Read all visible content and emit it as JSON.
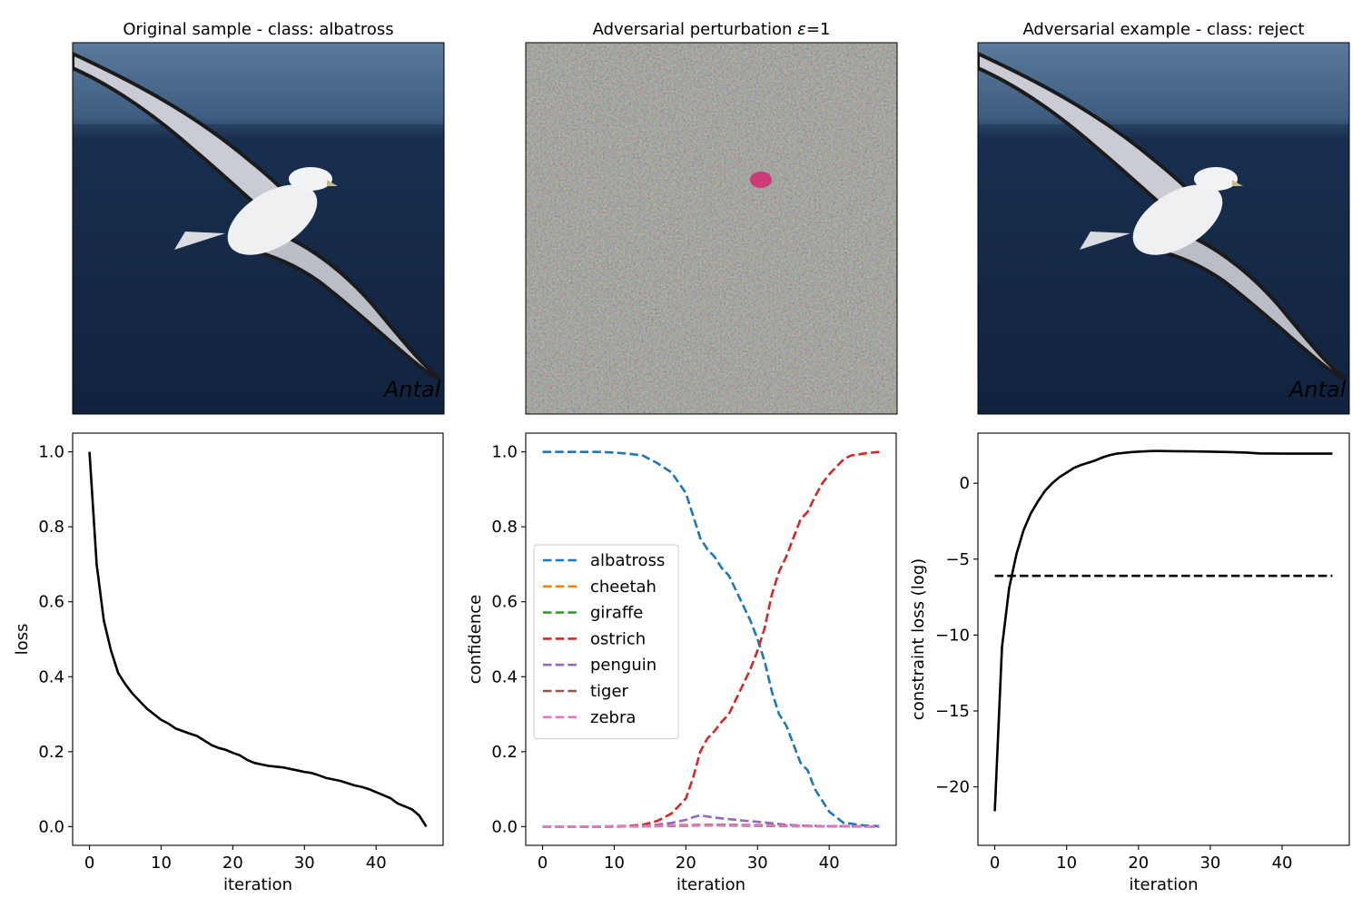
{
  "panels": {
    "original": {
      "title": "Original sample - class: albatross",
      "watermark": "Antal"
    },
    "perturbation": {
      "title_prefix": "Adversarial perturbation ",
      "title_epsilon": "ε",
      "title_suffix": "=1"
    },
    "adversarial": {
      "title": "Adversarial example - class: reject",
      "watermark": "Antal"
    }
  },
  "colors": {
    "albatross": "#1f77b4",
    "cheetah": "#ff7f0e",
    "giraffe": "#2ca02c",
    "ostrich": "#d62728",
    "penguin": "#9467bd",
    "tiger": "#8c564b",
    "zebra": "#e377c2",
    "black": "#000000",
    "sky": "#4a6a8c",
    "sea": "#14284a",
    "perturbation_gray": "#8a8a80"
  },
  "chart_data": [
    {
      "type": "line",
      "xlabel": "iteration",
      "ylabel": "loss",
      "xlim": [
        -2.35,
        49.35
      ],
      "ylim": [
        -0.05,
        1.05
      ],
      "xticks": [
        "0",
        "10",
        "20",
        "30",
        "40"
      ],
      "yticks": [
        "0.0",
        "0.2",
        "0.4",
        "0.6",
        "0.8",
        "1.0"
      ],
      "series": [
        {
          "style": "solid",
          "color": "#000000",
          "x": [
            0,
            1,
            2,
            3,
            4,
            5,
            6,
            7,
            8,
            9,
            10,
            11,
            12,
            13,
            14,
            15,
            16,
            17,
            18,
            19,
            20,
            21,
            22,
            23,
            24,
            25,
            26,
            27,
            28,
            29,
            30,
            31,
            32,
            33,
            34,
            35,
            36,
            37,
            38,
            39,
            40,
            41,
            42,
            43,
            44,
            45,
            46,
            47
          ],
          "y": [
            1.0,
            0.7,
            0.55,
            0.47,
            0.41,
            0.38,
            0.355,
            0.335,
            0.315,
            0.3,
            0.285,
            0.275,
            0.262,
            0.255,
            0.248,
            0.242,
            0.23,
            0.218,
            0.21,
            0.205,
            0.197,
            0.19,
            0.178,
            0.17,
            0.166,
            0.162,
            0.16,
            0.158,
            0.154,
            0.15,
            0.146,
            0.143,
            0.137,
            0.13,
            0.126,
            0.122,
            0.116,
            0.11,
            0.106,
            0.1,
            0.092,
            0.084,
            0.076,
            0.062,
            0.054,
            0.046,
            0.03,
            0.0
          ]
        }
      ]
    },
    {
      "type": "line",
      "xlabel": "iteration",
      "ylabel": "confidence",
      "xlim": [
        -2.35,
        49.35
      ],
      "ylim": [
        -0.05,
        1.05
      ],
      "xticks": [
        "0",
        "10",
        "20",
        "30",
        "40"
      ],
      "yticks": [
        "0.0",
        "0.2",
        "0.4",
        "0.6",
        "0.8",
        "1.0"
      ],
      "legend": "center-left",
      "series": [
        {
          "name": "albatross",
          "style": "dashed",
          "color": "#1f77b4",
          "x": [
            0,
            2,
            4,
            6,
            8,
            10,
            12,
            14,
            16,
            18,
            20,
            21,
            22,
            23,
            24,
            25,
            26,
            27,
            28,
            29,
            30,
            31,
            32,
            33,
            34,
            35,
            36,
            37,
            38,
            39,
            40,
            41,
            42,
            43,
            44,
            45,
            46,
            47
          ],
          "y": [
            1.0,
            1.0,
            1.0,
            1.0,
            1.0,
            0.998,
            0.995,
            0.99,
            0.97,
            0.945,
            0.89,
            0.83,
            0.77,
            0.74,
            0.72,
            0.69,
            0.67,
            0.63,
            0.59,
            0.55,
            0.5,
            0.44,
            0.36,
            0.3,
            0.27,
            0.22,
            0.17,
            0.15,
            0.1,
            0.07,
            0.04,
            0.025,
            0.01,
            0.008,
            0.005,
            0.003,
            0.002,
            0.001
          ]
        },
        {
          "name": "cheetah",
          "style": "dashed",
          "color": "#ff7f0e",
          "x": [
            0,
            10,
            20,
            22,
            25,
            30,
            35,
            40,
            47
          ],
          "y": [
            0.0,
            0.0,
            0.003,
            0.004,
            0.004,
            0.003,
            0.002,
            0.001,
            0.0
          ]
        },
        {
          "name": "giraffe",
          "style": "dashed",
          "color": "#2ca02c",
          "x": [
            0,
            10,
            20,
            22,
            25,
            30,
            35,
            40,
            47
          ],
          "y": [
            0.0,
            0.0,
            0.002,
            0.003,
            0.003,
            0.002,
            0.001,
            0.001,
            0.0
          ]
        },
        {
          "name": "ostrich",
          "style": "dashed",
          "color": "#d62728",
          "x": [
            0,
            2,
            4,
            6,
            8,
            10,
            12,
            14,
            16,
            18,
            20,
            21,
            22,
            23,
            24,
            25,
            26,
            27,
            28,
            29,
            30,
            31,
            32,
            33,
            34,
            35,
            36,
            37,
            38,
            39,
            40,
            41,
            42,
            43,
            44,
            45,
            46,
            47
          ],
          "y": [
            0.0,
            0.0,
            0.0,
            0.0,
            0.0,
            0.001,
            0.002,
            0.005,
            0.015,
            0.035,
            0.075,
            0.13,
            0.2,
            0.235,
            0.255,
            0.28,
            0.3,
            0.34,
            0.38,
            0.42,
            0.47,
            0.53,
            0.62,
            0.68,
            0.72,
            0.77,
            0.82,
            0.84,
            0.88,
            0.915,
            0.94,
            0.96,
            0.98,
            0.99,
            0.993,
            0.996,
            0.998,
            1.0
          ]
        },
        {
          "name": "penguin",
          "style": "dashed",
          "color": "#9467bd",
          "x": [
            0,
            10,
            14,
            16,
            18,
            20,
            21,
            22,
            23,
            24,
            26,
            28,
            30,
            32,
            34,
            36,
            38,
            40,
            42,
            44,
            47
          ],
          "y": [
            0.0,
            0.0,
            0.002,
            0.005,
            0.01,
            0.018,
            0.025,
            0.03,
            0.027,
            0.024,
            0.02,
            0.016,
            0.013,
            0.009,
            0.005,
            0.003,
            0.002,
            0.001,
            0.001,
            0.0,
            0.0
          ]
        },
        {
          "name": "tiger",
          "style": "dashed",
          "color": "#8c564b",
          "x": [
            0,
            10,
            20,
            22,
            25,
            30,
            35,
            40,
            47
          ],
          "y": [
            0.0,
            0.0,
            0.004,
            0.005,
            0.005,
            0.004,
            0.002,
            0.001,
            0.0
          ]
        },
        {
          "name": "zebra",
          "style": "dashed",
          "color": "#e377c2",
          "x": [
            0,
            10,
            20,
            22,
            25,
            30,
            35,
            40,
            47
          ],
          "y": [
            0.0,
            0.0,
            0.003,
            0.004,
            0.004,
            0.003,
            0.002,
            0.001,
            0.0
          ]
        }
      ]
    },
    {
      "type": "line",
      "xlabel": "iteration",
      "ylabel": "constraint loss (log)",
      "xlim": [
        -2.35,
        49.35
      ],
      "ylim": [
        -23.85,
        3.3
      ],
      "xticks": [
        "0",
        "10",
        "20",
        "30",
        "40"
      ],
      "yticks": [
        "−20",
        "−15",
        "−10",
        "−5",
        "0"
      ],
      "series": [
        {
          "style": "solid",
          "color": "#000000",
          "x": [
            0,
            1,
            2,
            3,
            4,
            5,
            6,
            7,
            8,
            9,
            10,
            11,
            12,
            13,
            14,
            15,
            16,
            17,
            18,
            19,
            20,
            21,
            22,
            23,
            25,
            27,
            30,
            33,
            35,
            37,
            40,
            43,
            47
          ],
          "y": [
            -21.6,
            -10.8,
            -6.9,
            -4.7,
            -3.1,
            -2.0,
            -1.2,
            -0.5,
            0.0,
            0.4,
            0.7,
            1.0,
            1.2,
            1.35,
            1.5,
            1.7,
            1.85,
            1.95,
            2.0,
            2.05,
            2.08,
            2.1,
            2.12,
            2.12,
            2.11,
            2.1,
            2.08,
            2.05,
            2.02,
            1.96,
            1.95,
            1.95,
            1.95
          ]
        },
        {
          "style": "dashed",
          "color": "#000000",
          "x": [
            0,
            47
          ],
          "y": [
            -6.1,
            -6.1
          ]
        }
      ]
    }
  ]
}
